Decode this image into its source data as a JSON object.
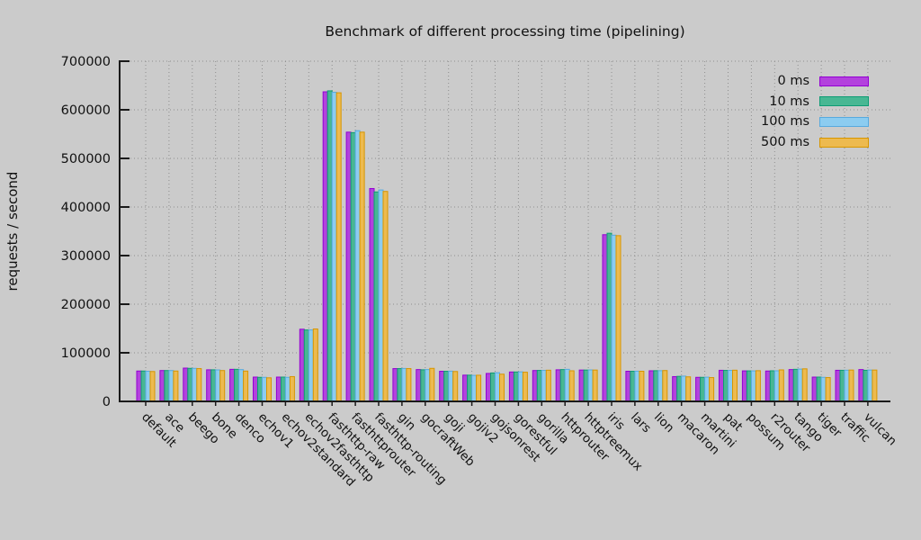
{
  "title": "Benchmark of different processing time (pipelining)",
  "chart_data": {
    "type": "bar",
    "title": "Benchmark of different processing time (pipelining)",
    "xlabel": "",
    "ylabel": "requests / second",
    "ylim": [
      0,
      700000
    ],
    "ytick_step": 100000,
    "grid": true,
    "legend_position": "top-right",
    "background": "#cbcbcb",
    "categories": [
      "default",
      "ace",
      "beego",
      "bone",
      "denco",
      "echov1",
      "echov2standard",
      "echov2fasthttp",
      "fasthttp-raw",
      "fasthttprouter",
      "fasthttp-routing",
      "gin",
      "gocraftWeb",
      "goji",
      "gojiv2",
      "gojsonrest",
      "gorestful",
      "gorilla",
      "httprouter",
      "httptreemux",
      "iris",
      "lars",
      "lion",
      "macaron",
      "martini",
      "pat",
      "possum",
      "r2router",
      "tango",
      "tiger",
      "traffic",
      "vulcan"
    ],
    "series": [
      {
        "name": "0 ms",
        "fill": "#b342dd",
        "border": "#9400d3",
        "values": [
          62500,
          63500,
          68500,
          65000,
          66000,
          50000,
          50000,
          148500,
          637000,
          554000,
          438000,
          67500,
          65500,
          62000,
          54000,
          57500,
          60500,
          63500,
          65000,
          64500,
          343000,
          62000,
          63000,
          51000,
          49500,
          64000,
          62800,
          62500,
          65500,
          50000,
          64000,
          65500
        ]
      },
      {
        "name": "10 ms",
        "fill": "#48b793",
        "border": "#0e9c74",
        "values": [
          62500,
          63500,
          68000,
          65000,
          66000,
          49500,
          50000,
          147000,
          639000,
          553000,
          431000,
          67500,
          65000,
          62000,
          54000,
          58500,
          60500,
          63800,
          65500,
          64500,
          346000,
          62000,
          63200,
          51500,
          49500,
          63800,
          62800,
          63000,
          66000,
          50000,
          64000,
          64000
        ]
      },
      {
        "name": "100 ms",
        "fill": "#8cccf0",
        "border": "#57aade",
        "values": [
          62000,
          63500,
          68000,
          64800,
          65400,
          49500,
          49500,
          147000,
          636000,
          557000,
          435000,
          67800,
          65500,
          62200,
          53500,
          59000,
          60800,
          63800,
          66000,
          64800,
          342000,
          62200,
          63200,
          52000,
          49800,
          63800,
          62800,
          63000,
          66500,
          49500,
          64200,
          64500
        ]
      },
      {
        "name": "500 ms",
        "fill": "#edba4f",
        "border": "#d79600",
        "values": [
          61500,
          62500,
          67500,
          63500,
          62400,
          48500,
          51000,
          149000,
          635000,
          554000,
          432000,
          67500,
          68000,
          61500,
          53800,
          56000,
          60000,
          64200,
          63000,
          64500,
          341000,
          62000,
          63500,
          50500,
          49000,
          64200,
          63200,
          64800,
          67000,
          49000,
          64500,
          64500
        ]
      }
    ]
  },
  "legend": {
    "items": [
      "0 ms",
      "10 ms",
      "100 ms",
      "500 ms"
    ]
  }
}
